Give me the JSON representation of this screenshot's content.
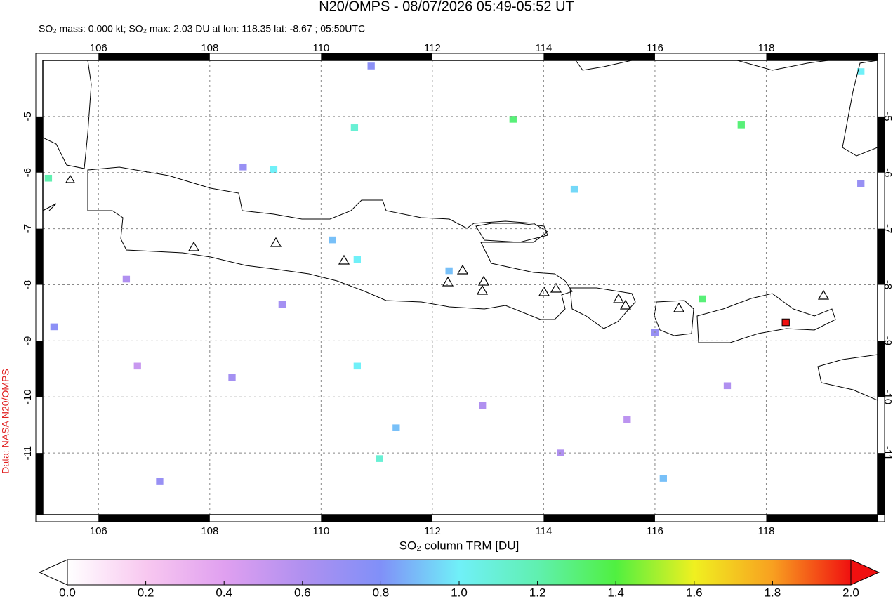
{
  "chart_data": {
    "type": "map",
    "title": "N20/OMPS - 08/07/2026 05:49-05:52 UT",
    "subtitle": "SO₂ mass: 0.000 kt; SO₂ max: 2.03 DU at lon: 118.35 lat: -8.67 ; 05:50UTC",
    "credit": "Data: NASA N20/OMPS",
    "xlim": [
      105,
      120
    ],
    "ylim": [
      -12.1,
      -4
    ],
    "xticks": [
      106,
      108,
      110,
      112,
      114,
      116,
      118
    ],
    "yticks": [
      -5,
      -6,
      -7,
      -8,
      -9,
      -10,
      -11
    ],
    "grid": true,
    "pixels": [
      {
        "lon": 118.35,
        "lat": -8.67,
        "value": 2.03
      },
      {
        "lon": 105.1,
        "lat": -6.1,
        "value": 1.2
      },
      {
        "lon": 113.45,
        "lat": -5.05,
        "value": 1.3
      },
      {
        "lon": 117.55,
        "lat": -5.15,
        "value": 1.3
      },
      {
        "lon": 116.85,
        "lat": -8.25,
        "value": 1.3
      },
      {
        "lon": 110.6,
        "lat": -5.2,
        "value": 1.1
      },
      {
        "lon": 111.05,
        "lat": -11.1,
        "value": 1.1
      },
      {
        "lon": 109.15,
        "lat": -5.95,
        "value": 1.0
      },
      {
        "lon": 110.65,
        "lat": -9.45,
        "value": 1.0
      },
      {
        "lon": 110.65,
        "lat": -7.55,
        "value": 1.0
      },
      {
        "lon": 111.35,
        "lat": -10.55,
        "value": 0.9
      },
      {
        "lon": 116.15,
        "lat": -11.45,
        "value": 0.9
      },
      {
        "lon": 105.2,
        "lat": -8.75,
        "value": 0.75
      },
      {
        "lon": 107.1,
        "lat": -11.5,
        "value": 0.7
      },
      {
        "lon": 110.2,
        "lat": -7.2,
        "value": 0.9
      },
      {
        "lon": 108.6,
        "lat": -5.9,
        "value": 0.7
      },
      {
        "lon": 106.5,
        "lat": -7.9,
        "value": 0.6
      },
      {
        "lon": 109.3,
        "lat": -8.35,
        "value": 0.65
      },
      {
        "lon": 112.3,
        "lat": -7.75,
        "value": 0.9
      },
      {
        "lon": 114.55,
        "lat": -6.3,
        "value": 0.95
      },
      {
        "lon": 116.0,
        "lat": -8.85,
        "value": 0.7
      },
      {
        "lon": 112.9,
        "lat": -10.15,
        "value": 0.6
      },
      {
        "lon": 108.4,
        "lat": -9.65,
        "value": 0.65
      },
      {
        "lon": 114.3,
        "lat": -11.0,
        "value": 0.6
      },
      {
        "lon": 119.7,
        "lat": -6.2,
        "value": 0.7
      },
      {
        "lon": 119.7,
        "lat": -4.2,
        "value": 1.0
      },
      {
        "lon": 115.5,
        "lat": -10.4,
        "value": 0.55
      },
      {
        "lon": 110.9,
        "lat": -4.1,
        "value": 0.75
      },
      {
        "lon": 117.3,
        "lat": -9.8,
        "value": 0.6
      },
      {
        "lon": 106.7,
        "lat": -9.45,
        "value": 0.5
      }
    ],
    "colorbar": {
      "label": "SO₂ column TRM [DU]",
      "lim": [
        0,
        2
      ],
      "ticks": [
        {
          "value": 0,
          "label": "0.0"
        },
        0.2,
        0.4,
        0.6,
        0.8,
        {
          "value": 1,
          "label": "1.0"
        },
        1.2,
        1.4,
        1.6,
        1.8,
        {
          "value": 2,
          "label": "2.0"
        }
      ],
      "colorscale": [
        [
          0,
          "#ffffff"
        ],
        [
          0.2,
          "#f8c8f0"
        ],
        [
          0.4,
          "#e0a0f0"
        ],
        [
          0.6,
          "#b090f0"
        ],
        [
          0.8,
          "#8090f8"
        ],
        [
          1.0,
          "#70f0f8"
        ],
        [
          1.2,
          "#60f0b0"
        ],
        [
          1.4,
          "#50f040"
        ],
        [
          1.6,
          "#f0f020"
        ],
        [
          1.8,
          "#f8a020"
        ],
        [
          2.0,
          "#f01010"
        ]
      ]
    }
  }
}
